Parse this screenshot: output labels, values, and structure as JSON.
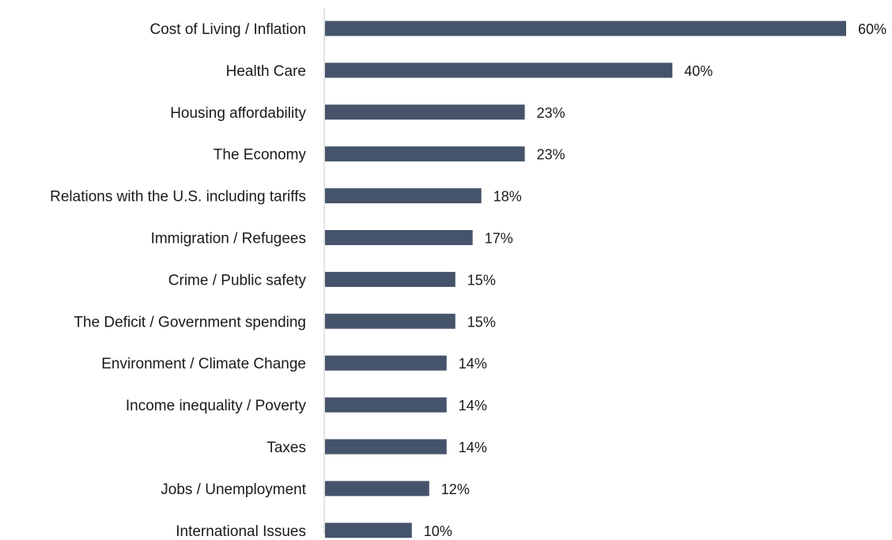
{
  "chart_data": {
    "type": "bar",
    "orientation": "horizontal",
    "categories": [
      "Cost of Living / Inflation",
      "Health Care",
      "Housing affordability",
      "The Economy",
      "Relations with the U.S. including tariffs",
      "Immigration / Refugees",
      "Crime / Public safety",
      "The Deficit / Government spending",
      "Environment / Climate Change",
      "Income inequality / Poverty",
      "Taxes",
      "Jobs / Unemployment",
      "International Issues"
    ],
    "values": [
      60,
      40,
      23,
      23,
      18,
      17,
      15,
      15,
      14,
      14,
      14,
      12,
      10
    ],
    "value_labels": [
      "60%",
      "40%",
      "23%",
      "23%",
      "18%",
      "17%",
      "15%",
      "15%",
      "14%",
      "14%",
      "14%",
      "12%",
      "10%"
    ],
    "unit": "%",
    "title": "",
    "xlabel": "",
    "ylabel": "",
    "xlim": [
      0,
      60
    ],
    "grid": false,
    "legend": "none",
    "colors": {
      "bar": "#46546b",
      "axis": "#d0d0d0",
      "text": "#1a1a1a"
    }
  }
}
